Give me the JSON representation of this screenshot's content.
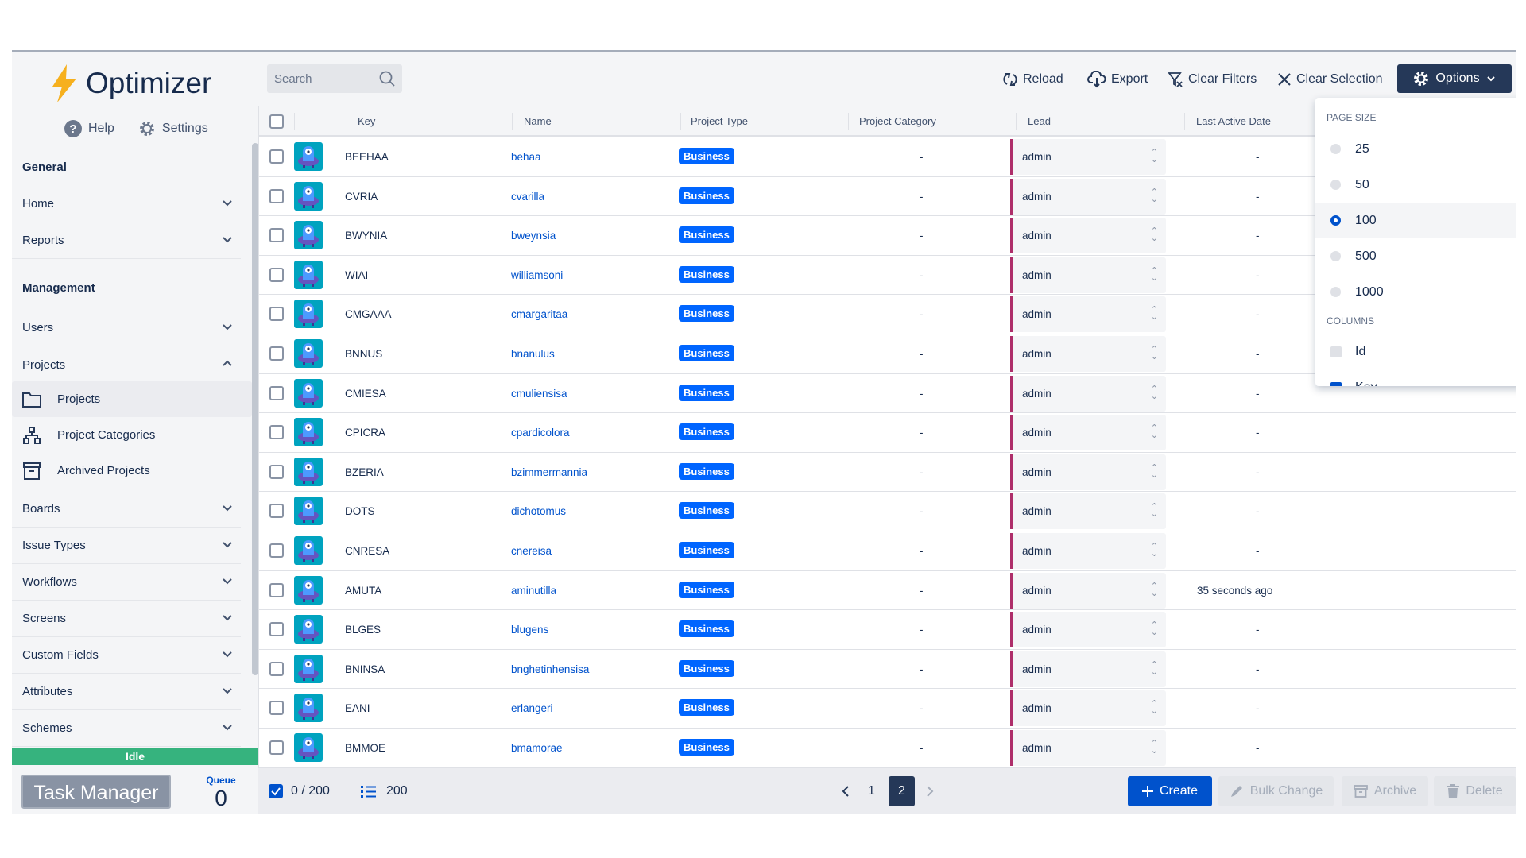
{
  "app": {
    "name": "Optimizer",
    "help": "Help",
    "settings": "Settings"
  },
  "sidebar": {
    "sections": [
      {
        "label": "General"
      },
      {
        "label": "Management"
      }
    ],
    "items": [
      {
        "label": "Home",
        "expanded": false
      },
      {
        "label": "Reports",
        "expanded": false
      },
      {
        "label": "Users",
        "expanded": false
      },
      {
        "label": "Projects",
        "expanded": true
      },
      {
        "label": "Boards",
        "expanded": false
      },
      {
        "label": "Issue Types",
        "expanded": false
      },
      {
        "label": "Workflows",
        "expanded": false
      },
      {
        "label": "Screens",
        "expanded": false
      },
      {
        "label": "Custom Fields",
        "expanded": false
      },
      {
        "label": "Attributes",
        "expanded": false
      },
      {
        "label": "Schemes",
        "expanded": false
      }
    ],
    "subitems": [
      {
        "label": "Projects",
        "icon": "folder-icon",
        "active": true
      },
      {
        "label": "Project Categories",
        "icon": "hierarchy-icon",
        "active": false
      },
      {
        "label": "Archived Projects",
        "icon": "archive-icon",
        "active": false
      }
    ],
    "status": "Idle",
    "task_manager": "Task Manager",
    "queue_label": "Queue",
    "queue_count": "0"
  },
  "toolbar": {
    "search_placeholder": "Search",
    "reload": "Reload",
    "export": "Export",
    "clear_filters": "Clear Filters",
    "clear_selection": "Clear Selection",
    "options": "Options"
  },
  "table": {
    "columns": [
      "Key",
      "Name",
      "Project Type",
      "Project Category",
      "Lead",
      "Last Active Date"
    ],
    "rows": [
      {
        "key": "BEEHAA",
        "name": "behaa",
        "type": "Business",
        "category": "-",
        "lead": "admin",
        "last_active": "-"
      },
      {
        "key": "CVRIA",
        "name": "cvarilla",
        "type": "Business",
        "category": "-",
        "lead": "admin",
        "last_active": "-"
      },
      {
        "key": "BWYNIA",
        "name": "bweynsia",
        "type": "Business",
        "category": "-",
        "lead": "admin",
        "last_active": "-"
      },
      {
        "key": "WIAI",
        "name": "williamsoni",
        "type": "Business",
        "category": "-",
        "lead": "admin",
        "last_active": "-"
      },
      {
        "key": "CMGAAA",
        "name": "cmargaritaa",
        "type": "Business",
        "category": "-",
        "lead": "admin",
        "last_active": "-"
      },
      {
        "key": "BNNUS",
        "name": "bnanulus",
        "type": "Business",
        "category": "-",
        "lead": "admin",
        "last_active": "-"
      },
      {
        "key": "CMIESA",
        "name": "cmuliensisa",
        "type": "Business",
        "category": "-",
        "lead": "admin",
        "last_active": "-"
      },
      {
        "key": "CPICRA",
        "name": "cpardicolora",
        "type": "Business",
        "category": "-",
        "lead": "admin",
        "last_active": "-"
      },
      {
        "key": "BZERIA",
        "name": "bzimmermannia",
        "type": "Business",
        "category": "-",
        "lead": "admin",
        "last_active": "-"
      },
      {
        "key": "DOTS",
        "name": "dichotomus",
        "type": "Business",
        "category": "-",
        "lead": "admin",
        "last_active": "-"
      },
      {
        "key": "CNRESA",
        "name": "cnereisa",
        "type": "Business",
        "category": "-",
        "lead": "admin",
        "last_active": "-"
      },
      {
        "key": "AMUTA",
        "name": "aminutilla",
        "type": "Business",
        "category": "-",
        "lead": "admin",
        "last_active": "35 seconds ago"
      },
      {
        "key": "BLGES",
        "name": "blugens",
        "type": "Business",
        "category": "-",
        "lead": "admin",
        "last_active": "-"
      },
      {
        "key": "BNINSA",
        "name": "bnghetinhensisa",
        "type": "Business",
        "category": "-",
        "lead": "admin",
        "last_active": "-"
      },
      {
        "key": "EANI",
        "name": "erlangeri",
        "type": "Business",
        "category": "-",
        "lead": "admin",
        "last_active": "-"
      },
      {
        "key": "BMMOE",
        "name": "bmamorae",
        "type": "Business",
        "category": "-",
        "lead": "admin",
        "last_active": "-"
      }
    ]
  },
  "options_menu": {
    "page_size_label": "PAGE SIZE",
    "page_sizes": [
      "25",
      "50",
      "100",
      "500",
      "1000"
    ],
    "selected_page_size": "100",
    "columns_label": "COLUMNS",
    "columns": [
      {
        "label": "Id",
        "checked": false
      },
      {
        "label": "Key",
        "checked": true
      }
    ]
  },
  "footer": {
    "selected": "0 / 200",
    "total": "200",
    "pages": [
      "1",
      "2"
    ],
    "current_page": "2",
    "create": "Create",
    "bulk_change": "Bulk Change",
    "archive": "Archive",
    "delete": "Delete"
  },
  "colors": {
    "accent": "#0052cc",
    "navy": "#253858",
    "badge": "#0065ff",
    "idle": "#36b37e",
    "lead_border": "#ae2e6a"
  }
}
